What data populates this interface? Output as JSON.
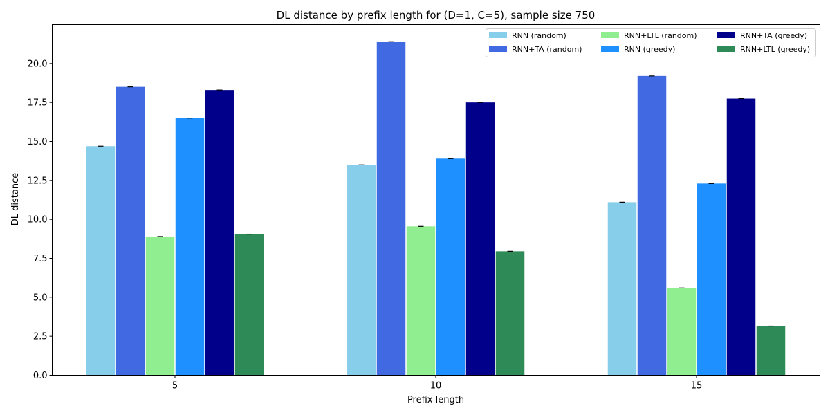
{
  "chart_data": {
    "type": "bar",
    "title": "DL distance by prefix length for (D=1, C=5), sample size 750",
    "xlabel": "Prefix length",
    "ylabel": "DL distance",
    "categories": [
      "5",
      "10",
      "15"
    ],
    "ylim": [
      0,
      22.5
    ],
    "yticks": [
      "0.0",
      "2.5",
      "5.0",
      "7.5",
      "10.0",
      "12.5",
      "15.0",
      "17.5",
      "20.0"
    ],
    "grid": false,
    "legend_position": "top-right",
    "series": [
      {
        "name": "RNN (random)",
        "color": "#87CEEB",
        "values": [
          14.7,
          13.5,
          11.1
        ]
      },
      {
        "name": "RNN+TA (random)",
        "color": "#4169E1",
        "values": [
          18.5,
          21.4,
          19.2
        ]
      },
      {
        "name": "RNN+LTL (random)",
        "color": "#90EE90",
        "values": [
          8.9,
          9.55,
          5.6
        ]
      },
      {
        "name": "RNN (greedy)",
        "color": "#1E90FF",
        "values": [
          16.5,
          13.9,
          12.3
        ]
      },
      {
        "name": "RNN+TA (greedy)",
        "color": "#00008B",
        "values": [
          18.3,
          17.5,
          17.75
        ]
      },
      {
        "name": "RNN+LTL (greedy)",
        "color": "#2E8B57",
        "values": [
          9.05,
          7.95,
          3.15
        ]
      }
    ]
  }
}
